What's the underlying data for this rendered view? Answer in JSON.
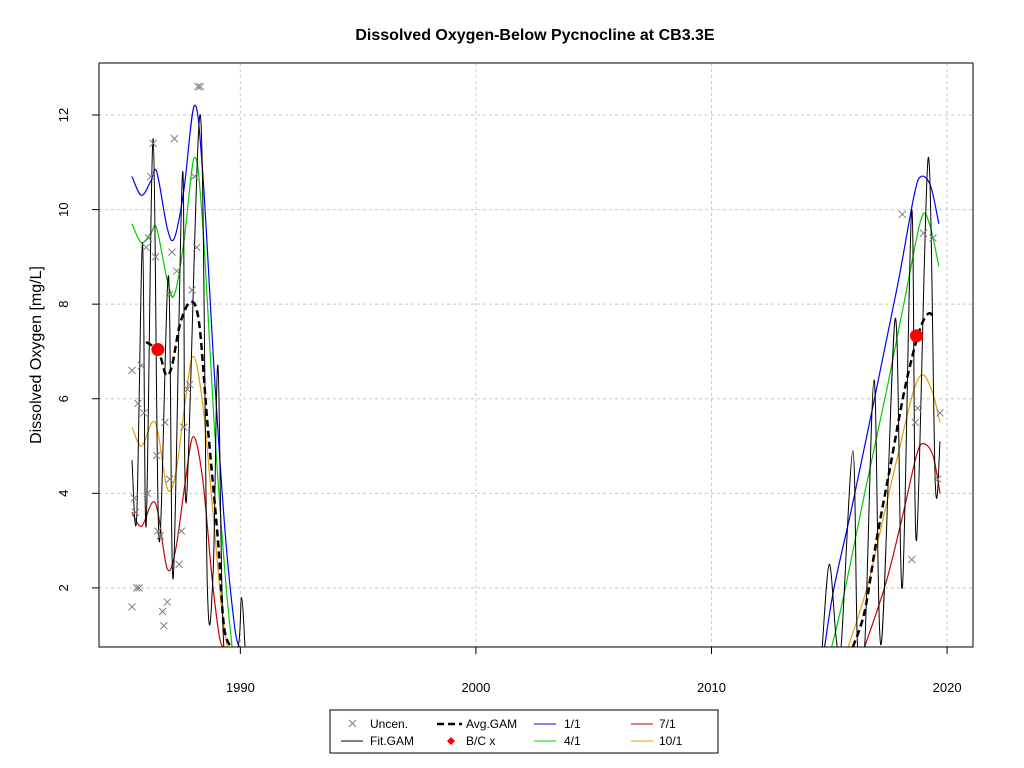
{
  "chart_data": {
    "type": "scatter",
    "title": "Dissolved Oxygen-Below Pycnocline at CB3.3E",
    "xlabel": "",
    "ylabel": "Dissolved Oxygen [mg/L]",
    "xlim": [
      1984,
      2021.1
    ],
    "ylim": [
      0.75,
      13.1
    ],
    "xticks": [
      1990,
      2000,
      2010,
      2020
    ],
    "yticks": [
      2,
      4,
      6,
      8,
      10,
      12
    ],
    "grid": true,
    "legend_position": "bottom-center",
    "legend": {
      "uncen": "Uncen.",
      "fitgam": "Fit.GAM",
      "avggam": "Avg.GAM",
      "bc": "B/C x",
      "jan": "1/1",
      "apr": "4/1",
      "jul": "7/1",
      "oct": "10/1"
    },
    "colors": {
      "uncen": "#7f7f7f",
      "fitgam": "#000000",
      "avggam": "#000000",
      "bc": "#ff0000",
      "jan": "#0000ff",
      "apr": "#00cc00",
      "jul": "#cc0000",
      "oct": "#e69f00"
    },
    "observations_uncensored": [
      [
        1985.4,
        1.6
      ],
      [
        1985.5,
        3.9
      ],
      [
        1985.55,
        3.6
      ],
      [
        1985.6,
        2.0
      ],
      [
        1985.65,
        5.9
      ],
      [
        1985.7,
        2.0
      ],
      [
        1985.8,
        6.7
      ],
      [
        1985.9,
        5.7
      ],
      [
        1986.0,
        9.2
      ],
      [
        1986.1,
        9.4
      ],
      [
        1986.2,
        10.7
      ],
      [
        1986.3,
        11.4
      ],
      [
        1986.4,
        9.0
      ],
      [
        1986.45,
        4.8
      ],
      [
        1986.5,
        3.2
      ],
      [
        1986.6,
        3.1
      ],
      [
        1986.7,
        1.5
      ],
      [
        1986.75,
        1.2
      ],
      [
        1986.8,
        5.5
      ],
      [
        1986.9,
        1.7
      ],
      [
        1987.0,
        8.2
      ],
      [
        1987.1,
        9.1
      ],
      [
        1987.2,
        11.5
      ],
      [
        1987.3,
        8.7
      ],
      [
        1987.4,
        2.5
      ],
      [
        1987.5,
        3.2
      ],
      [
        1987.6,
        5.4
      ],
      [
        1987.75,
        6.2
      ],
      [
        1987.85,
        6.3
      ],
      [
        1987.95,
        8.3
      ],
      [
        1988.05,
        10.7
      ],
      [
        1988.15,
        9.2
      ],
      [
        1988.2,
        12.6
      ],
      [
        1988.3,
        12.6
      ],
      [
        1985.4,
        6.6
      ],
      [
        1986.05,
        4.0
      ],
      [
        1987.0,
        4.3
      ],
      [
        2018.1,
        9.9
      ],
      [
        2018.5,
        2.6
      ],
      [
        2018.65,
        5.5
      ],
      [
        2018.75,
        5.8
      ],
      [
        2019.0,
        9.5
      ],
      [
        2019.4,
        9.4
      ],
      [
        2019.6,
        4.3
      ],
      [
        2019.7,
        5.7
      ]
    ],
    "fit_gam_1": [
      [
        1985.4,
        4.7
      ],
      [
        1985.6,
        3.5
      ],
      [
        1985.85,
        9.3
      ],
      [
        1986.0,
        3.3
      ],
      [
        1986.3,
        11.5
      ],
      [
        1986.55,
        3.0
      ],
      [
        1986.95,
        8.6
      ],
      [
        1987.15,
        2.2
      ],
      [
        1987.55,
        10.8
      ],
      [
        1987.7,
        3.8
      ],
      [
        1988.3,
        12.0
      ],
      [
        1988.6,
        2.0
      ],
      [
        1988.85,
        2.4
      ],
      [
        1989.05,
        6.7
      ],
      [
        1989.3,
        0.75
      ],
      [
        1989.9,
        0.75
      ],
      [
        1990.05,
        1.8
      ],
      [
        1990.2,
        0.75
      ]
    ],
    "fit_gam_2": [
      [
        2014.7,
        0.75
      ],
      [
        2015.0,
        2.5
      ],
      [
        2015.3,
        0.9
      ],
      [
        2015.5,
        0.75
      ],
      [
        2016.0,
        4.9
      ],
      [
        2016.2,
        0.75
      ],
      [
        2016.5,
        0.75
      ],
      [
        2016.9,
        6.4
      ],
      [
        2017.2,
        0.8
      ],
      [
        2017.8,
        7.7
      ],
      [
        2018.1,
        2.0
      ],
      [
        2018.5,
        10.0
      ],
      [
        2018.7,
        3.0
      ],
      [
        2019.2,
        11.1
      ],
      [
        2019.5,
        4.2
      ],
      [
        2019.7,
        5.1
      ]
    ],
    "avg_gam_1": [
      [
        1986.0,
        7.2
      ],
      [
        1986.3,
        7.1
      ],
      [
        1986.6,
        6.9
      ],
      [
        1986.85,
        6.5
      ],
      [
        1987.1,
        6.7
      ],
      [
        1987.45,
        7.6
      ],
      [
        1987.9,
        8.05
      ],
      [
        1988.25,
        7.6
      ],
      [
        1988.6,
        5.5
      ],
      [
        1989.05,
        3.0
      ],
      [
        1989.3,
        1.2
      ],
      [
        1989.6,
        0.75
      ]
    ],
    "avg_gam_2": [
      [
        2016.0,
        0.75
      ],
      [
        2016.5,
        1.5
      ],
      [
        2017.0,
        3.0
      ],
      [
        2017.6,
        4.6
      ],
      [
        2018.2,
        6.2
      ],
      [
        2018.8,
        7.4
      ],
      [
        2019.2,
        7.8
      ],
      [
        2019.45,
        7.7
      ]
    ],
    "bc_points": [
      [
        1986.5,
        7.04
      ],
      [
        2018.7,
        7.33
      ]
    ],
    "season_1_1": {
      "segments": [
        [
          [
            1985.4,
            10.7
          ],
          [
            1985.8,
            10.3
          ],
          [
            1986.2,
            10.6
          ],
          [
            1986.45,
            10.8
          ],
          [
            1986.9,
            9.6
          ],
          [
            1987.2,
            9.4
          ],
          [
            1987.6,
            10.4
          ],
          [
            1988.05,
            12.2
          ],
          [
            1988.4,
            10.8
          ],
          [
            1988.9,
            6.5
          ],
          [
            1989.35,
            3.2
          ],
          [
            1989.75,
            1.2
          ],
          [
            1989.95,
            0.75
          ]
        ],
        [
          [
            2014.8,
            0.75
          ],
          [
            2015.2,
            2.0
          ],
          [
            2016.0,
            3.8
          ],
          [
            2017.0,
            6.2
          ],
          [
            2017.9,
            8.4
          ],
          [
            2018.6,
            10.3
          ],
          [
            2018.9,
            10.7
          ],
          [
            2019.3,
            10.5
          ],
          [
            2019.65,
            9.7
          ]
        ]
      ]
    },
    "season_4_1": {
      "segments": [
        [
          [
            1985.4,
            9.7
          ],
          [
            1985.8,
            9.3
          ],
          [
            1986.2,
            9.5
          ],
          [
            1986.45,
            9.6
          ],
          [
            1986.9,
            8.5
          ],
          [
            1987.2,
            8.2
          ],
          [
            1987.6,
            9.3
          ],
          [
            1988.05,
            11.1
          ],
          [
            1988.4,
            9.7
          ],
          [
            1988.9,
            5.4
          ],
          [
            1989.35,
            2.3
          ],
          [
            1989.65,
            0.75
          ]
        ],
        [
          [
            2015.1,
            0.75
          ],
          [
            2015.6,
            1.8
          ],
          [
            2016.5,
            4.0
          ],
          [
            2017.4,
            6.1
          ],
          [
            2018.2,
            8.1
          ],
          [
            2018.9,
            9.8
          ],
          [
            2019.25,
            9.7
          ],
          [
            2019.65,
            8.8
          ]
        ]
      ]
    },
    "season_7_1": {
      "segments": [
        [
          [
            1985.4,
            3.6
          ],
          [
            1985.8,
            3.3
          ],
          [
            1986.25,
            3.8
          ],
          [
            1986.5,
            3.6
          ],
          [
            1986.9,
            2.4
          ],
          [
            1987.25,
            2.8
          ],
          [
            1987.65,
            4.2
          ],
          [
            1988.0,
            5.2
          ],
          [
            1988.4,
            4.3
          ],
          [
            1988.8,
            2.2
          ],
          [
            1989.1,
            1.0
          ],
          [
            1989.25,
            0.75
          ]
        ],
        [
          [
            2016.5,
            0.75
          ],
          [
            2017.4,
            2.1
          ],
          [
            2018.1,
            3.5
          ],
          [
            2018.7,
            4.8
          ],
          [
            2019.0,
            5.05
          ],
          [
            2019.4,
            4.8
          ],
          [
            2019.7,
            4.0
          ]
        ]
      ]
    },
    "season_10_1": {
      "segments": [
        [
          [
            1985.4,
            5.4
          ],
          [
            1985.8,
            5.0
          ],
          [
            1986.25,
            5.5
          ],
          [
            1986.5,
            5.3
          ],
          [
            1986.9,
            4.1
          ],
          [
            1987.25,
            4.4
          ],
          [
            1987.65,
            5.9
          ],
          [
            1988.0,
            6.9
          ],
          [
            1988.4,
            5.9
          ],
          [
            1988.8,
            3.8
          ],
          [
            1989.2,
            1.6
          ],
          [
            1989.45,
            0.75
          ]
        ],
        [
          [
            2015.8,
            0.75
          ],
          [
            2016.6,
            2.0
          ],
          [
            2017.3,
            3.5
          ],
          [
            2018.0,
            5.0
          ],
          [
            2018.6,
            6.2
          ],
          [
            2019.0,
            6.5
          ],
          [
            2019.4,
            6.1
          ],
          [
            2019.7,
            5.5
          ]
        ]
      ]
    }
  }
}
